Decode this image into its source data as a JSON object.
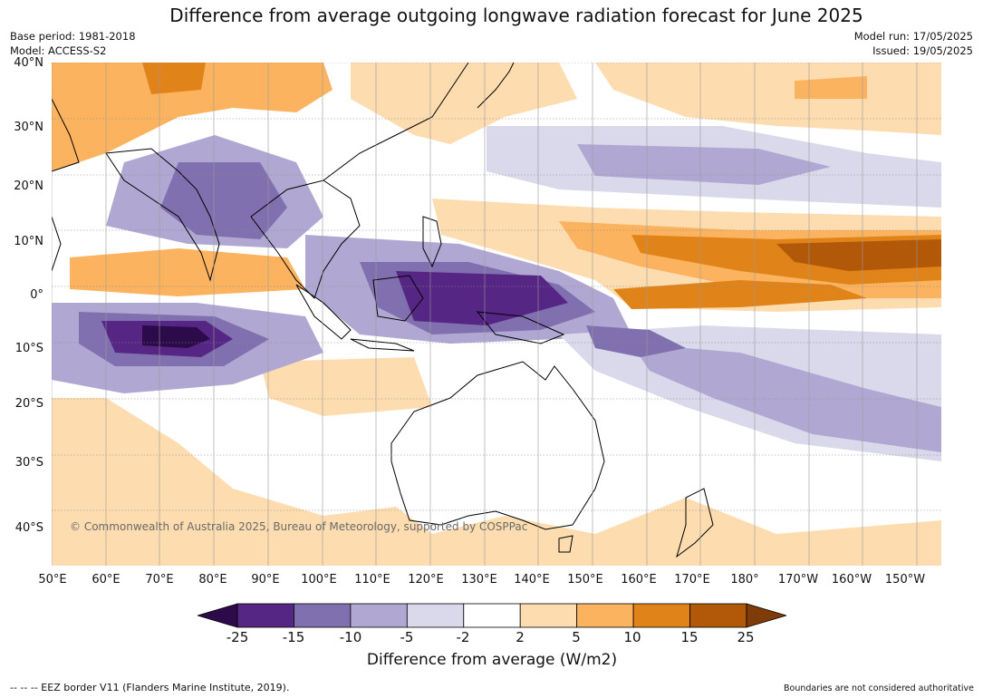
{
  "title": "Difference from average outgoing longwave radiation forecast for June 2025",
  "meta": {
    "base_period": "Base period: 1981-2018",
    "model": "Model: ACCESS-S2",
    "model_run": "Model run: 17/05/2025",
    "issued": "Issued: 19/05/2025"
  },
  "lat_labels": [
    "40°N",
    "30°N",
    "20°N",
    "10°N",
    "0°",
    "10°S",
    "20°S",
    "30°S",
    "40°S"
  ],
  "lon_labels": [
    "50°E",
    "60°E",
    "70°E",
    "80°E",
    "90°E",
    "100°E",
    "110°E",
    "120°E",
    "130°E",
    "140°E",
    "150°E",
    "160°E",
    "170°E",
    "180°",
    "170°W",
    "160°W",
    "150°W"
  ],
  "copyright": "© Commonwealth of Australia 2025, Bureau of Meteorology, supported by COSPPac",
  "colorbar": {
    "labels": [
      "-25",
      "-15",
      "-10",
      "-5",
      "-2",
      "2",
      "5",
      "10",
      "15",
      "25"
    ],
    "colors": [
      "#2d0a4a",
      "#552683",
      "#8170b0",
      "#b0a8d3",
      "#d9d9eb",
      "#ffffff",
      "#fddcb0",
      "#fbb360",
      "#e0841a",
      "#b25909",
      "#7f3b08"
    ],
    "title": "Difference from average (W/m2)"
  },
  "footer": {
    "eez_note": "-- -- -- EEZ border V11 (Flanders Marine Institute, 2019).",
    "boundaries_note": "Boundaries are not considered authoritative"
  }
}
